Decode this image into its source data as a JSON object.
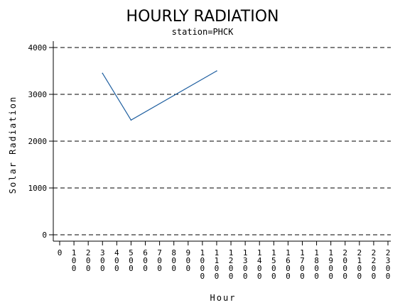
{
  "chart_data": {
    "type": "line",
    "title": "HOURLY RADIATION",
    "subtitle": "station=PHCK",
    "xlabel": "Hour",
    "ylabel": "Solar Radiation",
    "x_ticks": [
      "0",
      "100",
      "200",
      "300",
      "400",
      "500",
      "600",
      "700",
      "800",
      "900",
      "1000",
      "1100",
      "1200",
      "1300",
      "1400",
      "1500",
      "1600",
      "1700",
      "1800",
      "1900",
      "2000",
      "2100",
      "2200",
      "2300"
    ],
    "y_ticks": [
      "0",
      "1000",
      "2000",
      "3000",
      "4000"
    ],
    "ylim": [
      0,
      4000
    ],
    "xlim": [
      0,
      2300
    ],
    "grid": true,
    "series": [
      {
        "x": [
          300,
          500,
          1100
        ],
        "y": [
          3450,
          2450,
          3500
        ],
        "color": "#1f5fa0"
      }
    ]
  }
}
